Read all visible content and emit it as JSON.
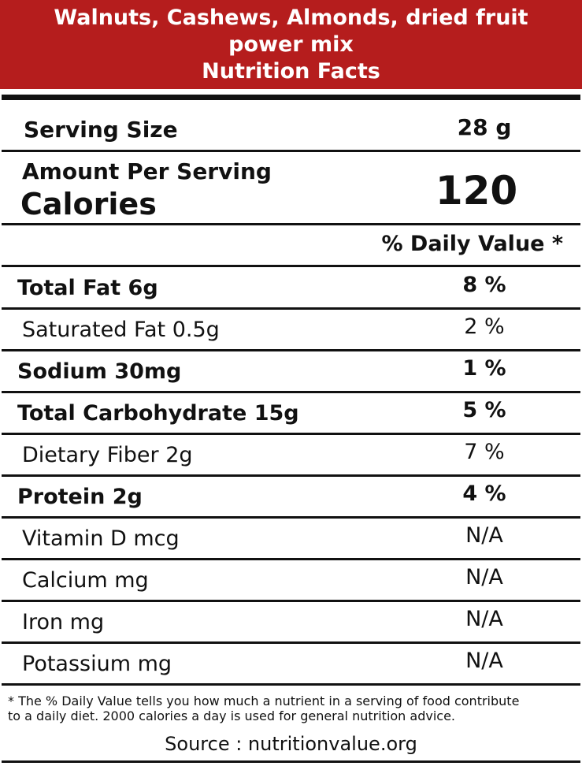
{
  "header": {
    "title_lines": [
      "Walnuts, Cashews, Almonds, dried fruit",
      "power mix",
      "Nutrition Facts"
    ]
  },
  "serving": {
    "label": "Serving Size",
    "value": "28 g"
  },
  "calories": {
    "heading": "Amount Per Serving",
    "label": "Calories",
    "value": "120"
  },
  "daily_value_heading": "% Daily Value *",
  "nutrients": [
    {
      "name": "Total Fat 6g",
      "dv": "8 %",
      "bold": true
    },
    {
      "name": "Saturated Fat 0.5g",
      "dv": "2 %",
      "bold": false
    },
    {
      "name": "Sodium 30mg",
      "dv": "1 %",
      "bold": true
    },
    {
      "name": "Total Carbohydrate 15g",
      "dv": "5 %",
      "bold": true
    },
    {
      "name": "Dietary Fiber 2g",
      "dv": "7 %",
      "bold": false
    },
    {
      "name": "Protein 2g",
      "dv": "4 %",
      "bold": true
    },
    {
      "name": "Vitamin D mcg",
      "dv": "N/A",
      "bold": false
    },
    {
      "name": "Calcium mg",
      "dv": "N/A",
      "bold": false
    },
    {
      "name": "Iron mg",
      "dv": "N/A",
      "bold": false
    },
    {
      "name": "Potassium mg",
      "dv": "N/A",
      "bold": false
    }
  ],
  "footnote_lines": [
    "* The % Daily Value tells you how much a nutrient in a serving of food contribute",
    "to a daily diet. 2000 calories a day is used for general nutrition advice."
  ],
  "source": "Source : nutritionvalue.org"
}
